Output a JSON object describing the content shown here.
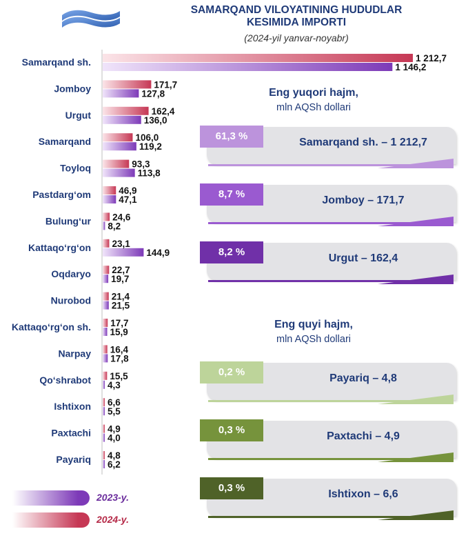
{
  "header": {
    "title_line1": "SAMARQAND VILOYATINING HUDUDLAR",
    "title_line2": "KESIMIDA IMPORTI",
    "subtitle": "(2024-yil yanvar-noyabr)"
  },
  "chart_data": {
    "type": "bar",
    "orientation": "horizontal",
    "categories": [
      "Samarqand sh.",
      "Jomboy",
      "Urgut",
      "Samarqand",
      "Toyloq",
      "Pastdarg‘om",
      "Bulung‘ur",
      "Kattaqo‘rg‘on",
      "Oqdaryo",
      "Nurobod",
      "Kattaqo‘rg‘on sh.",
      "Narpay",
      "Qo‘shrabot",
      "Ishtixon",
      "Paxtachi",
      "Payariq"
    ],
    "series": [
      {
        "name": "2024-y.",
        "color": "#c63855",
        "values": [
          1212.7,
          171.7,
          162.4,
          106.0,
          93.3,
          46.9,
          24.6,
          23.1,
          22.7,
          21.4,
          17.7,
          16.4,
          15.5,
          6.6,
          4.9,
          4.8
        ],
        "labels": [
          "1 212,7",
          "171,7",
          "162,4",
          "106,0",
          "93,3",
          "46,9",
          "24,6",
          "23,1",
          "22,7",
          "21,4",
          "17,7",
          "16,4",
          "15,5",
          "6,6",
          "4,9",
          "4,8"
        ]
      },
      {
        "name": "2023-y.",
        "color": "#7d3ab8",
        "values": [
          1146.2,
          127.8,
          136.0,
          119.2,
          113.8,
          47.1,
          8.2,
          144.9,
          19.7,
          21.5,
          15.9,
          17.8,
          4.3,
          5.5,
          4.0,
          6.2
        ],
        "labels": [
          "1 146,2",
          "127,8",
          "136,0",
          "119,2",
          "113,8",
          "47,1",
          "8,2",
          "144,9",
          "19,7",
          "21,5",
          "15,9",
          "17,8",
          "4,3",
          "5,5",
          "4,0",
          "6,2"
        ]
      }
    ]
  },
  "legend": {
    "y2023": "2023-y.",
    "y2024": "2024-y."
  },
  "top_section": {
    "heading": "Eng yuqori hajm,",
    "unit": "mln AQSh dollari",
    "items": [
      {
        "pct": "61,3 %",
        "label": "Samarqand sh. – 1 212,7",
        "color": "#bc93dc"
      },
      {
        "pct": "8,7 %",
        "label": "Jomboy – 171,7",
        "color": "#9a5ad0"
      },
      {
        "pct": "8,2 %",
        "label": "Urgut – 162,4",
        "color": "#7030a8"
      }
    ]
  },
  "bottom_section": {
    "heading": "Eng quyi hajm,",
    "unit": "mln AQSh dollari",
    "items": [
      {
        "pct": "0,2 %",
        "label": "Payariq – 4,8",
        "color": "#bdd49a"
      },
      {
        "pct": "0,3 %",
        "label": "Paxtachi – 4,9",
        "color": "#76933c"
      },
      {
        "pct": "0,3 %",
        "label": "Ishtixon – 6,6",
        "color": "#4f6228"
      }
    ]
  }
}
